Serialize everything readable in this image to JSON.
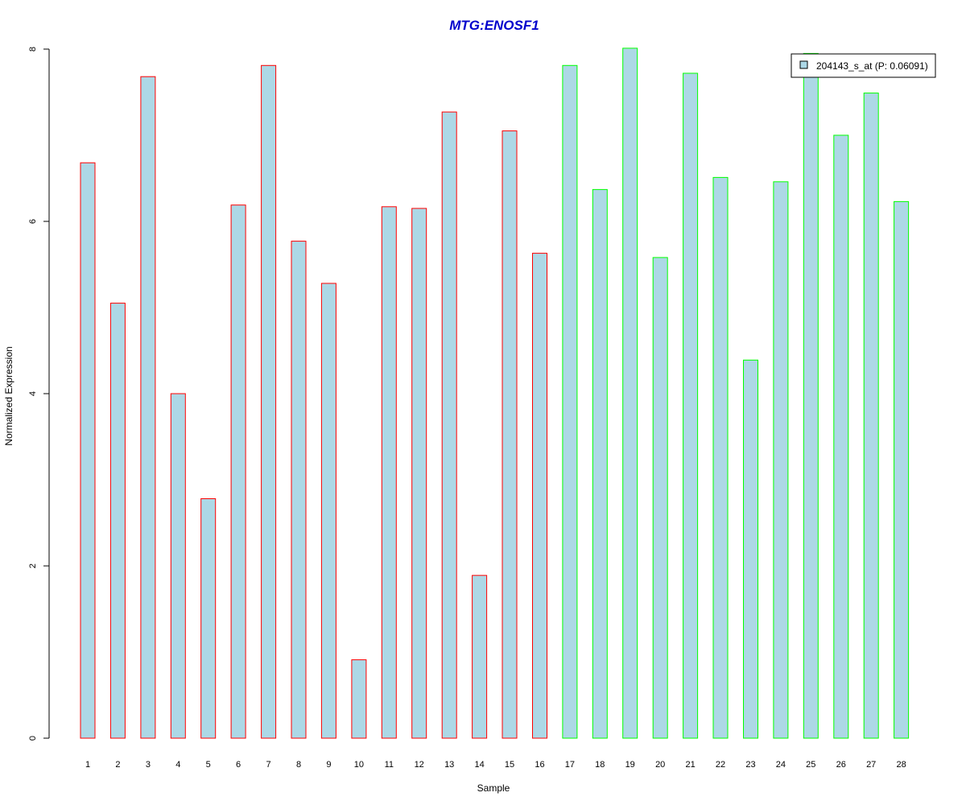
{
  "chart_data": {
    "type": "bar",
    "title": "MTG:ENOSF1",
    "xlabel": "Sample",
    "ylabel": "Normalized Expression",
    "categories": [
      "1",
      "2",
      "3",
      "4",
      "5",
      "6",
      "7",
      "8",
      "9",
      "10",
      "11",
      "12",
      "13",
      "14",
      "15",
      "16",
      "17",
      "18",
      "19",
      "20",
      "21",
      "22",
      "23",
      "24",
      "25",
      "26",
      "27",
      "28"
    ],
    "values": [
      6.68,
      5.05,
      7.68,
      4.0,
      2.78,
      6.19,
      7.81,
      5.77,
      5.28,
      0.91,
      6.17,
      6.15,
      7.27,
      1.89,
      7.05,
      5.63,
      7.81,
      6.37,
      8.01,
      5.58,
      7.72,
      6.51,
      4.39,
      6.46,
      7.95,
      7.0,
      7.49,
      6.23
    ],
    "group_a_count": 16,
    "ylim": [
      0,
      8
    ],
    "yticks": [
      "0",
      "2",
      "4",
      "6",
      "8"
    ],
    "grid": false,
    "legend_position": "top-right",
    "series": [
      {
        "name": "204143_s_at (P: 0.06091)"
      }
    ],
    "colors": {
      "bar_fill": "#add8e6",
      "group_a_border": "#ff0000",
      "group_b_border": "#00ff00",
      "title": "#0000cc",
      "axis": "#000000"
    }
  }
}
